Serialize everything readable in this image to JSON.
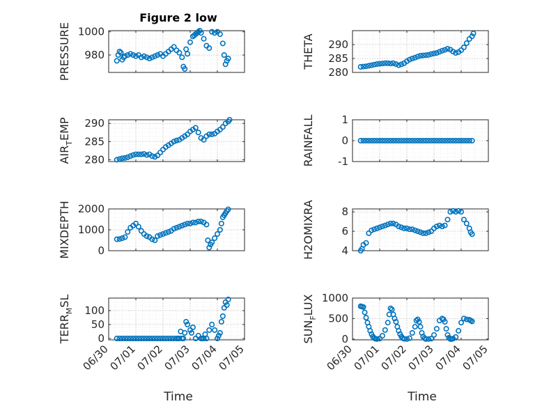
{
  "title": "Figure 2 low",
  "chart_data": {
    "type": "scatter",
    "x_ticks": [
      "06/30",
      "07/01",
      "07/02",
      "07/03",
      "07/04",
      "07/05"
    ],
    "x_range": [
      0,
      5
    ],
    "xlabel": "Time",
    "marker": "circle",
    "color": "#0072BD",
    "grid": "on (major + minor, dotted)",
    "panels": [
      {
        "id": "pressure",
        "ylabel": "PRESSURE",
        "ylim": [
          965,
          1001
        ],
        "yticks": [
          980,
          1000
        ],
        "x": [
          0.3,
          0.35,
          0.4,
          0.45,
          0.5,
          0.55,
          0.6,
          0.7,
          0.8,
          0.9,
          1.0,
          1.1,
          1.2,
          1.3,
          1.4,
          1.5,
          1.6,
          1.7,
          1.8,
          1.9,
          2.0,
          2.1,
          2.2,
          2.3,
          2.4,
          2.5,
          2.6,
          2.7,
          2.75,
          2.8,
          2.85,
          2.9,
          3.0,
          3.1,
          3.15,
          3.2,
          3.25,
          3.3,
          3.35,
          3.4,
          3.5,
          3.6,
          3.7,
          3.8,
          3.9,
          4.0,
          4.1,
          4.2,
          4.25,
          4.3,
          4.35,
          4.4
        ],
        "y": [
          975,
          980,
          983,
          982,
          976,
          978,
          979,
          980,
          981,
          980,
          979,
          980,
          978,
          979,
          978,
          977,
          978,
          979,
          980,
          981,
          979,
          981,
          983,
          985,
          987,
          984,
          982,
          978,
          970,
          968,
          985,
          981,
          991,
          996,
          997,
          998,
          999,
          1000,
          1001,
          999,
          994,
          988,
          986,
          1000,
          999,
          1000,
          998,
          990,
          980,
          972,
          975,
          977
        ]
      },
      {
        "id": "theta",
        "ylabel": "THETA",
        "ylim": [
          280,
          295
        ],
        "yticks": [
          280,
          285,
          290
        ],
        "x": [
          0.3,
          0.4,
          0.5,
          0.6,
          0.7,
          0.8,
          0.9,
          1.0,
          1.1,
          1.2,
          1.3,
          1.4,
          1.5,
          1.6,
          1.7,
          1.8,
          1.9,
          2.0,
          2.1,
          2.2,
          2.3,
          2.4,
          2.5,
          2.6,
          2.7,
          2.8,
          2.9,
          3.0,
          3.1,
          3.2,
          3.3,
          3.4,
          3.5,
          3.6,
          3.7,
          3.8,
          3.9,
          4.0,
          4.1,
          4.2,
          4.3,
          4.4,
          4.45
        ],
        "y": [
          282,
          282.1,
          282.2,
          282.4,
          282.6,
          282.8,
          283,
          283.1,
          283.2,
          283.3,
          283.3,
          283.2,
          283.3,
          283,
          282.6,
          282.9,
          283.3,
          284,
          284.6,
          285,
          285.3,
          285.7,
          286,
          286.1,
          286.2,
          286.3,
          286.6,
          286.8,
          287,
          287.4,
          287.8,
          288.1,
          288.5,
          288.2,
          287.5,
          287,
          287.3,
          288,
          289,
          290.5,
          292,
          293,
          294
        ]
      },
      {
        "id": "air_temp",
        "ylabel": "AIR_TEMP",
        "ylim": [
          279.5,
          291
        ],
        "yticks": [
          280,
          285,
          290
        ],
        "x": [
          0.3,
          0.4,
          0.5,
          0.6,
          0.7,
          0.8,
          0.9,
          1.0,
          1.1,
          1.2,
          1.3,
          1.4,
          1.5,
          1.6,
          1.7,
          1.8,
          1.9,
          2.0,
          2.1,
          2.2,
          2.3,
          2.4,
          2.5,
          2.6,
          2.7,
          2.8,
          2.9,
          3.0,
          3.1,
          3.2,
          3.3,
          3.4,
          3.5,
          3.6,
          3.7,
          3.8,
          3.9,
          4.0,
          4.1,
          4.2,
          4.3,
          4.4,
          4.45
        ],
        "y": [
          280,
          280.2,
          280.4,
          280.5,
          280.7,
          281,
          281.3,
          281.5,
          281.5,
          281.5,
          281.6,
          281.3,
          281.5,
          281,
          280.8,
          281.2,
          282,
          282.8,
          283.5,
          284,
          284.5,
          285,
          285.3,
          285.5,
          286,
          286.5,
          287,
          287.8,
          288.3,
          288.8,
          287.5,
          286,
          285.5,
          286.5,
          287,
          287,
          287.2,
          287.8,
          288.3,
          289,
          290,
          290.5,
          291
        ]
      },
      {
        "id": "rainfall",
        "ylabel": "RAINFALL",
        "ylim": [
          -1,
          1
        ],
        "yticks": [
          -1,
          0,
          1
        ],
        "x": [
          0.3,
          0.4,
          0.5,
          0.6,
          0.7,
          0.8,
          0.9,
          1.0,
          1.1,
          1.2,
          1.3,
          1.4,
          1.5,
          1.6,
          1.7,
          1.8,
          1.9,
          2.0,
          2.1,
          2.2,
          2.3,
          2.4,
          2.5,
          2.6,
          2.7,
          2.8,
          2.9,
          3.0,
          3.1,
          3.2,
          3.3,
          3.4,
          3.5,
          3.6,
          3.7,
          3.8,
          3.9,
          4.0,
          4.1,
          4.2,
          4.3,
          4.4
        ],
        "y": [
          0,
          0,
          0,
          0,
          0,
          0,
          0,
          0,
          0,
          0,
          0,
          0,
          0,
          0,
          0,
          0,
          0,
          0,
          0,
          0,
          0,
          0,
          0,
          0,
          0,
          0,
          0,
          0,
          0,
          0,
          0,
          0,
          0,
          0,
          0,
          0,
          0,
          0,
          0,
          0,
          0,
          0
        ]
      },
      {
        "id": "mixdepth",
        "ylabel": "MIXDEPTH",
        "ylim": [
          0,
          2000
        ],
        "yticks": [
          0,
          1000,
          2000
        ],
        "x": [
          0.3,
          0.4,
          0.5,
          0.6,
          0.7,
          0.8,
          0.9,
          1.0,
          1.1,
          1.2,
          1.3,
          1.4,
          1.5,
          1.6,
          1.7,
          1.8,
          1.9,
          2.0,
          2.1,
          2.2,
          2.3,
          2.4,
          2.5,
          2.6,
          2.7,
          2.8,
          2.9,
          3.0,
          3.1,
          3.2,
          3.3,
          3.4,
          3.5,
          3.6,
          3.65,
          3.7,
          3.75,
          3.8,
          3.9,
          4.0,
          4.1,
          4.15,
          4.2,
          4.25,
          4.3,
          4.35,
          4.4
        ],
        "y": [
          550,
          560,
          600,
          650,
          900,
          1100,
          1200,
          1300,
          1150,
          950,
          800,
          700,
          650,
          550,
          500,
          700,
          750,
          800,
          850,
          900,
          950,
          1050,
          1100,
          1150,
          1200,
          1250,
          1300,
          1300,
          1350,
          1350,
          1400,
          1400,
          1350,
          1250,
          500,
          150,
          300,
          400,
          600,
          800,
          1000,
          1300,
          1600,
          1700,
          1800,
          1900,
          1980
        ]
      },
      {
        "id": "h2omixra",
        "ylabel": "H2OMIXRA",
        "ylim": [
          4,
          8.3
        ],
        "yticks": [
          4,
          6,
          8
        ],
        "x": [
          0.3,
          0.35,
          0.4,
          0.5,
          0.6,
          0.7,
          0.8,
          0.9,
          1.0,
          1.1,
          1.2,
          1.3,
          1.4,
          1.5,
          1.6,
          1.7,
          1.8,
          1.9,
          2.0,
          2.1,
          2.2,
          2.3,
          2.4,
          2.5,
          2.6,
          2.7,
          2.8,
          2.9,
          3.0,
          3.1,
          3.2,
          3.3,
          3.4,
          3.5,
          3.6,
          3.7,
          3.8,
          3.9,
          4.0,
          4.1,
          4.2,
          4.3,
          4.35,
          4.4
        ],
        "y": [
          4,
          4.2,
          4.6,
          4.8,
          5.8,
          6.1,
          6.2,
          6.3,
          6.4,
          6.5,
          6.6,
          6.7,
          6.8,
          6.8,
          6.7,
          6.5,
          6.4,
          6.3,
          6.3,
          6.2,
          6.2,
          6.1,
          6,
          5.9,
          5.8,
          5.8,
          5.9,
          6,
          6.3,
          6.5,
          6.6,
          6.5,
          6.6,
          7.2,
          8,
          8.1,
          8,
          8.1,
          8,
          7.2,
          6.8,
          6.3,
          5.9,
          5.7
        ]
      },
      {
        "id": "terr_msl",
        "ylabel": "TERR_MSL",
        "ylim": [
          -5,
          145
        ],
        "yticks": [
          0,
          50,
          100
        ],
        "x": [
          0.3,
          0.4,
          0.5,
          0.6,
          0.7,
          0.8,
          0.9,
          1.0,
          1.1,
          1.2,
          1.3,
          1.4,
          1.5,
          1.6,
          1.7,
          1.8,
          1.9,
          2.0,
          2.1,
          2.2,
          2.3,
          2.4,
          2.5,
          2.55,
          2.6,
          2.65,
          2.7,
          2.75,
          2.8,
          2.85,
          2.9,
          3.0,
          3.05,
          3.1,
          3.2,
          3.3,
          3.4,
          3.45,
          3.5,
          3.55,
          3.6,
          3.7,
          3.8,
          3.9,
          4.0,
          4.05,
          4.1,
          4.15,
          4.2,
          4.25,
          4.3,
          4.35,
          4.4
        ],
        "y": [
          0,
          0,
          0,
          0,
          0,
          0,
          0,
          0,
          0,
          0,
          0,
          0,
          0,
          0,
          0,
          0,
          0,
          0,
          0,
          0,
          0,
          0,
          0,
          0,
          0,
          25,
          0,
          0,
          20,
          60,
          50,
          30,
          20,
          40,
          0,
          10,
          0,
          0,
          0,
          15,
          0,
          30,
          50,
          30,
          0,
          10,
          20,
          60,
          80,
          110,
          130,
          120,
          140
        ]
      },
      {
        "id": "sun_flux",
        "ylabel": "SUN_FLUX",
        "ylim": [
          -20,
          1000
        ],
        "yticks": [
          0,
          500,
          1000
        ],
        "x": [
          0.3,
          0.35,
          0.4,
          0.45,
          0.5,
          0.55,
          0.6,
          0.65,
          0.7,
          0.75,
          0.8,
          0.85,
          0.9,
          1.0,
          1.1,
          1.2,
          1.3,
          1.35,
          1.4,
          1.45,
          1.5,
          1.55,
          1.6,
          1.65,
          1.7,
          1.75,
          1.8,
          1.85,
          1.9,
          2.0,
          2.1,
          2.2,
          2.3,
          2.35,
          2.4,
          2.45,
          2.5,
          2.55,
          2.6,
          2.65,
          2.7,
          2.8,
          2.9,
          3.0,
          3.1,
          3.2,
          3.3,
          3.35,
          3.4,
          3.45,
          3.5,
          3.55,
          3.6,
          3.65,
          3.7,
          3.8,
          3.9,
          4.0,
          4.1,
          4.2,
          4.3,
          4.35,
          4.4
        ],
        "y": [
          800,
          790,
          780,
          650,
          520,
          400,
          300,
          200,
          120,
          60,
          20,
          5,
          0,
          10,
          80,
          220,
          400,
          600,
          750,
          720,
          600,
          500,
          420,
          300,
          200,
          120,
          60,
          20,
          5,
          0,
          20,
          150,
          300,
          450,
          480,
          420,
          300,
          150,
          60,
          20,
          0,
          0,
          10,
          100,
          250,
          450,
          500,
          480,
          420,
          250,
          100,
          30,
          0,
          0,
          10,
          50,
          200,
          400,
          500,
          480,
          470,
          450,
          430
        ]
      }
    ]
  }
}
